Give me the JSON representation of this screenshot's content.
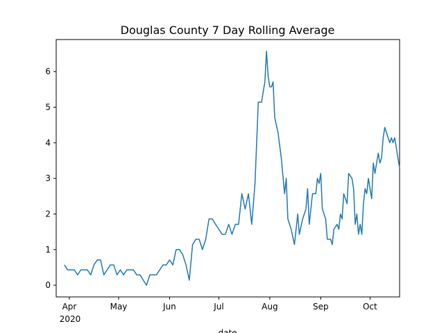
{
  "chart_data": {
    "type": "line",
    "title": "Douglas County 7 Day Rolling Average",
    "x_label": "date",
    "color": "#1f77b4",
    "x": [
      "2020-03-29",
      "2020-03-31",
      "2020-04-02",
      "2020-04-04",
      "2020-04-06",
      "2020-04-08",
      "2020-04-10",
      "2020-04-12",
      "2020-04-14",
      "2020-04-16",
      "2020-04-18",
      "2020-04-20",
      "2020-04-22",
      "2020-04-24",
      "2020-04-26",
      "2020-04-28",
      "2020-04-30",
      "2020-05-02",
      "2020-05-04",
      "2020-05-06",
      "2020-05-08",
      "2020-05-10",
      "2020-05-12",
      "2020-05-14",
      "2020-05-16",
      "2020-05-18",
      "2020-05-20",
      "2020-05-22",
      "2020-05-24",
      "2020-05-26",
      "2020-05-28",
      "2020-05-30",
      "2020-06-01",
      "2020-06-03",
      "2020-06-05",
      "2020-06-07",
      "2020-06-09",
      "2020-06-11",
      "2020-06-13",
      "2020-06-15",
      "2020-06-17",
      "2020-06-19",
      "2020-06-21",
      "2020-06-23",
      "2020-06-25",
      "2020-06-27",
      "2020-06-29",
      "2020-07-01",
      "2020-07-03",
      "2020-07-05",
      "2020-07-07",
      "2020-07-09",
      "2020-07-11",
      "2020-07-13",
      "2020-07-15",
      "2020-07-17",
      "2020-07-19",
      "2020-07-21",
      "2020-07-23",
      "2020-07-25",
      "2020-07-27",
      "2020-07-28",
      "2020-07-29",
      "2020-07-30",
      "2020-07-31",
      "2020-08-01",
      "2020-08-02",
      "2020-08-03",
      "2020-08-04",
      "2020-08-06",
      "2020-08-08",
      "2020-08-10",
      "2020-08-11",
      "2020-08-12",
      "2020-08-14",
      "2020-08-16",
      "2020-08-18",
      "2020-08-19",
      "2020-08-21",
      "2020-08-23",
      "2020-08-24",
      "2020-08-25",
      "2020-08-27",
      "2020-08-29",
      "2020-08-30",
      "2020-08-31",
      "2020-09-01",
      "2020-09-02",
      "2020-09-04",
      "2020-09-05",
      "2020-09-07",
      "2020-09-08",
      "2020-09-09",
      "2020-09-11",
      "2020-09-12",
      "2020-09-13",
      "2020-09-14",
      "2020-09-15",
      "2020-09-17",
      "2020-09-18",
      "2020-09-20",
      "2020-09-21",
      "2020-09-22",
      "2020-09-23",
      "2020-09-24",
      "2020-09-25",
      "2020-09-26",
      "2020-09-27",
      "2020-09-28",
      "2020-09-29",
      "2020-09-30",
      "2020-10-01",
      "2020-10-02",
      "2020-10-03",
      "2020-10-04",
      "2020-10-05",
      "2020-10-06",
      "2020-10-07",
      "2020-10-08",
      "2020-10-09",
      "2020-10-10",
      "2020-10-12",
      "2020-10-13",
      "2020-10-14",
      "2020-10-15",
      "2020-10-16",
      "2020-10-17",
      "2020-10-18",
      "2020-10-19"
    ],
    "values": [
      0.57,
      0.43,
      0.43,
      0.43,
      0.29,
      0.43,
      0.43,
      0.43,
      0.29,
      0.57,
      0.71,
      0.71,
      0.29,
      0.43,
      0.57,
      0.57,
      0.29,
      0.43,
      0.29,
      0.43,
      0.43,
      0.43,
      0.29,
      0.29,
      0.14,
      0,
      0.29,
      0.29,
      0.29,
      0.43,
      0.57,
      0.57,
      0.71,
      0.57,
      1.0,
      1.0,
      0.86,
      0.57,
      0.14,
      1.14,
      1.29,
      1.29,
      1.0,
      1.29,
      1.86,
      1.86,
      1.71,
      1.57,
      1.43,
      1.43,
      1.71,
      1.43,
      1.71,
      1.71,
      2.57,
      2.14,
      2.57,
      1.71,
      2.86,
      5.14,
      5.14,
      5.43,
      5.71,
      6.57,
      5.86,
      5.57,
      5.57,
      5.71,
      4.71,
      4.29,
      3.57,
      2.57,
      3.0,
      1.86,
      1.57,
      1.14,
      2.0,
      1.43,
      1.86,
      2.14,
      2.71,
      1.71,
      2.57,
      2.57,
      3.0,
      2.86,
      3.14,
      2.14,
      1.86,
      1.29,
      1.29,
      1.14,
      1.57,
      1.71,
      1.57,
      2.0,
      1.86,
      2.57,
      2.29,
      3.14,
      3.0,
      2.71,
      1.71,
      2.0,
      1.43,
      1.71,
      1.43,
      2.29,
      2.71,
      2.57,
      3.0,
      2.71,
      2.43,
      3.43,
      3.14,
      3.43,
      3.71,
      3.43,
      3.57,
      4.14,
      4.43,
      4.14,
      4.0,
      4.14,
      4.0,
      4.14,
      3.86,
      3.57,
      3.29
    ],
    "xlim": [
      "2020-03-24",
      "2020-10-19"
    ],
    "xticks": [
      {
        "value": "2020-04-01",
        "label": "Apr"
      },
      {
        "value": "2020-05-01",
        "label": "May"
      },
      {
        "value": "2020-06-01",
        "label": "Jun"
      },
      {
        "value": "2020-07-01",
        "label": "Jul"
      },
      {
        "value": "2020-08-01",
        "label": "Aug"
      },
      {
        "value": "2020-09-01",
        "label": "Sep"
      },
      {
        "value": "2020-10-01",
        "label": "Oct"
      }
    ],
    "x_year_label": "2020",
    "ylim": [
      -0.33,
      6.9
    ],
    "yticks": [
      0,
      1,
      2,
      3,
      4,
      5,
      6
    ],
    "grid": false
  }
}
